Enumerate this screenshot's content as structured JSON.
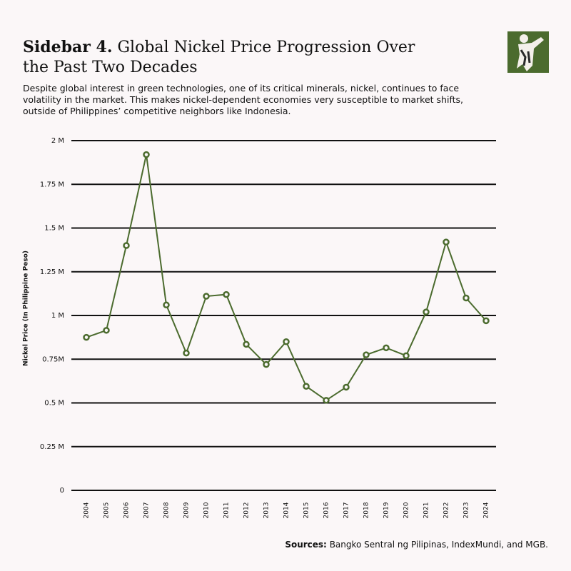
{
  "chart_data": {
    "type": "line",
    "title_label": "Sidebar 4.",
    "title": "Global Nickel Price Progression Over the Past Two Decades",
    "subtitle": "Despite global interest in green technologies, one of its critical minerals, nickel, continues to face volatility in the market. This makes nickel-dependent economies very susceptible to market shifts, outside of Philippines’ competitive neighbors like Indonesia.",
    "y_label": "Nickel Price (In Philippine Peso)",
    "source_label": "Sources:",
    "source": "Bangko Sentral ng Pilipinas, IndexMundi, and MGB.",
    "categories": [
      "2004",
      "2005",
      "2006",
      "2007",
      "2008",
      "2009",
      "2010",
      "2011",
      "2012",
      "2013",
      "2014",
      "2015",
      "2016",
      "2017",
      "2018",
      "2019",
      "2020",
      "2021",
      "2022",
      "2023",
      "2024"
    ],
    "series": [
      {
        "name": "Nickel Price",
        "color": "#4b6b2e",
        "values": [
          875000,
          915000,
          1400000,
          1920000,
          1060000,
          785000,
          1110000,
          1120000,
          835000,
          720000,
          850000,
          595000,
          515000,
          590000,
          775000,
          815000,
          770000,
          1020000,
          1420000,
          1100000,
          970000
        ]
      }
    ],
    "ylim": [
      0,
      2000000
    ],
    "yticks": [
      {
        "value": 0,
        "label": "0"
      },
      {
        "value": 250000,
        "label": "0.25 M"
      },
      {
        "value": 500000,
        "label": "0.5 M"
      },
      {
        "value": 750000,
        "label": "0.75M"
      },
      {
        "value": 1000000,
        "label": "1 M"
      },
      {
        "value": 1250000,
        "label": "1.25 M"
      },
      {
        "value": 1500000,
        "label": "1.5 M"
      },
      {
        "value": 1750000,
        "label": "1.75 M"
      },
      {
        "value": 2000000,
        "label": "2 M"
      }
    ],
    "grid": true
  }
}
